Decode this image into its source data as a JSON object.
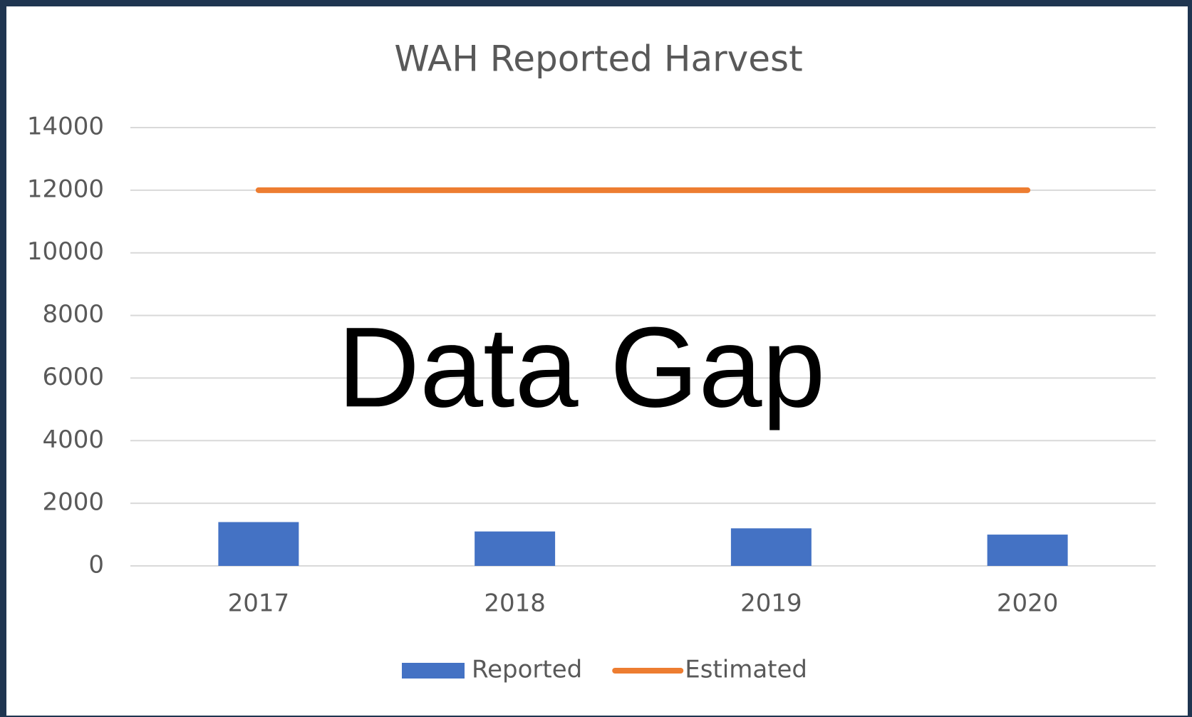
{
  "chart_data": {
    "type": "bar",
    "title": "WAH Reported Harvest",
    "annotation": "Data Gap",
    "categories": [
      "2017",
      "2018",
      "2019",
      "2020"
    ],
    "series": [
      {
        "name": "Reported",
        "type": "bar",
        "color": "#4472c4",
        "values": [
          1400,
          1100,
          1200,
          1000
        ]
      },
      {
        "name": "Estimated",
        "type": "line",
        "color": "#ed7d31",
        "values": [
          12000,
          12000,
          12000,
          12000
        ]
      }
    ],
    "ylim": [
      0,
      14000
    ],
    "yticks": [
      0,
      2000,
      4000,
      6000,
      8000,
      10000,
      12000,
      14000
    ],
    "grid": true,
    "legend": "bottom"
  }
}
